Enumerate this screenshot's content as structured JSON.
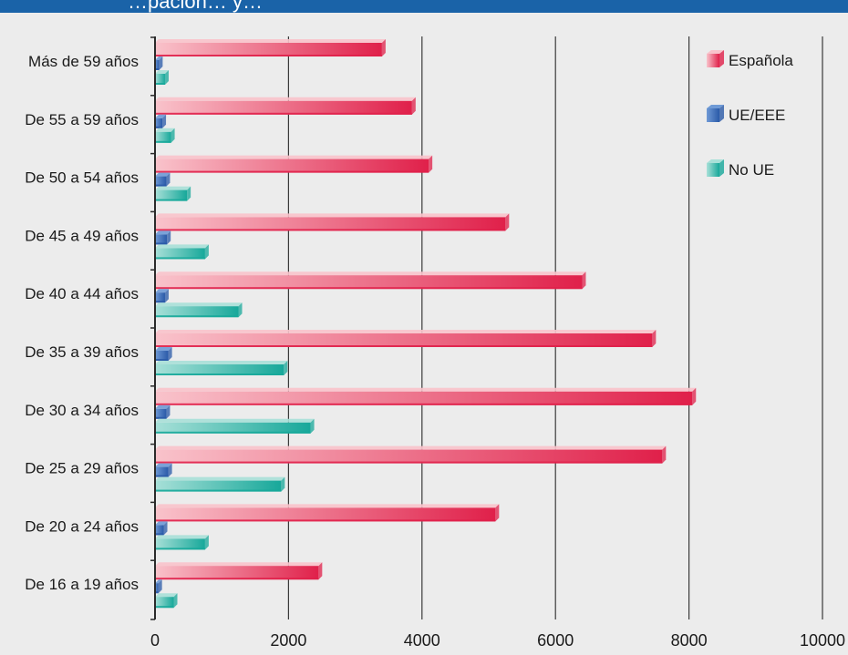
{
  "header": {
    "title_fragment": "…pación… y…"
  },
  "chart_data": {
    "type": "bar",
    "orientation": "horizontal",
    "categories": [
      "Más de 59 años",
      "De 55 a 59 años",
      "De 50 a 54 años",
      "De 45 a 49 años",
      "De 40 a 44 años",
      "De 35 a 39 años",
      "De 30 a 34 años",
      "De 25 a 29 años",
      "De 20 a 24 años",
      "De 16 a 19 años"
    ],
    "series": [
      {
        "name": "Española",
        "color": "#e0204a",
        "light": "#f9c3cb",
        "values": [
          3400,
          3850,
          4100,
          5250,
          6400,
          7450,
          8050,
          7600,
          5100,
          2450
        ]
      },
      {
        "name": "UE/EEE",
        "color": "#2a5aa8",
        "light": "#6f9ad6",
        "values": [
          60,
          110,
          170,
          180,
          150,
          200,
          170,
          200,
          130,
          50
        ]
      },
      {
        "name": "No UE",
        "color": "#17a89a",
        "light": "#a8e0d8",
        "values": [
          150,
          240,
          480,
          750,
          1250,
          1930,
          2330,
          1890,
          750,
          280
        ]
      }
    ],
    "xlim": [
      0,
      10000
    ],
    "xticks": [
      "0",
      "2000",
      "4000",
      "6000",
      "8000",
      "10000"
    ],
    "grid": true,
    "legend_position": "top-right"
  }
}
